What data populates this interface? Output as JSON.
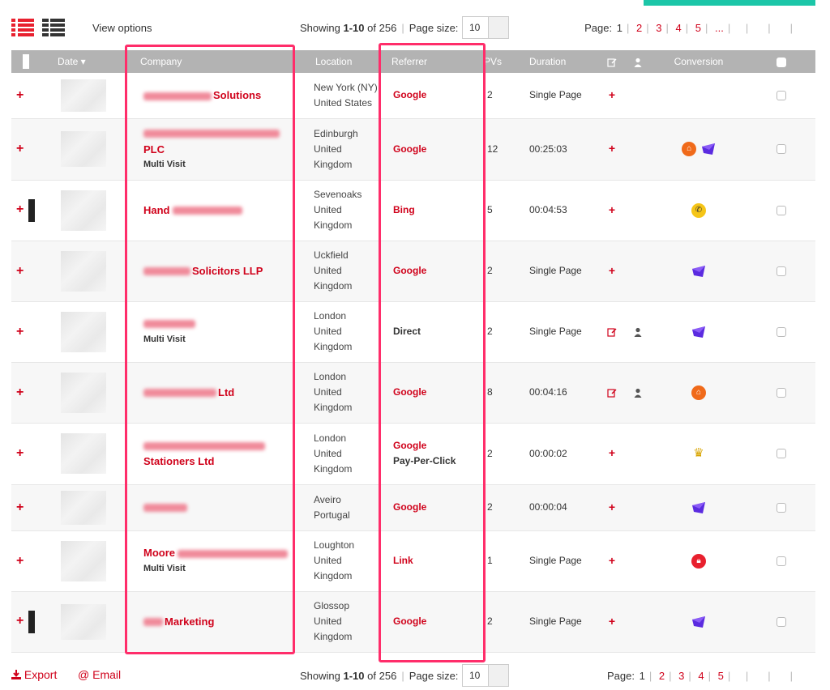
{
  "toolbar": {
    "view_options_label": "View options",
    "showing_prefix": "Showing",
    "showing_range": "1-10",
    "showing_of": "of 256",
    "page_size_label": "Page size:",
    "page_size_value": "10",
    "page_label": "Page:",
    "pages": [
      "1",
      "2",
      "3",
      "4",
      "5",
      "..."
    ],
    "current_page": "1"
  },
  "columns": {
    "date": "Date ▾",
    "company": "Company",
    "location": "Location",
    "referrer": "Referrer",
    "pvs": "PVs",
    "duration": "Duration",
    "conversion": "Conversion"
  },
  "rows": [
    {
      "company_suffix": "Solutions",
      "multi": "",
      "loc1": "New York (NY)",
      "loc2": "United States",
      "loc3": "",
      "referrer": "Google",
      "referrer_sub": "",
      "pvs": "2",
      "duration": "Single Page",
      "flag": false
    },
    {
      "company_suffix": "PLC",
      "multi": "Multi Visit",
      "loc1": "Edinburgh",
      "loc2": "United",
      "loc3": "Kingdom",
      "referrer": "Google",
      "referrer_sub": "",
      "pvs": "12",
      "duration": "00:25:03",
      "flag": false
    },
    {
      "company_suffix": "Hand",
      "multi": "",
      "loc1": "Sevenoaks",
      "loc2": "United",
      "loc3": "Kingdom",
      "referrer": "Bing",
      "referrer_sub": "",
      "pvs": "5",
      "duration": "00:04:53",
      "flag": true
    },
    {
      "company_suffix": "Solicitors LLP",
      "multi": "",
      "loc1": "Uckfield",
      "loc2": "United",
      "loc3": "Kingdom",
      "referrer": "Google",
      "referrer_sub": "",
      "pvs": "2",
      "duration": "Single Page",
      "flag": false
    },
    {
      "company_suffix": "",
      "multi": "Multi Visit",
      "loc1": "London",
      "loc2": "United",
      "loc3": "Kingdom",
      "referrer": "Direct",
      "referrer_sub": "",
      "pvs": "2",
      "duration": "Single Page",
      "flag": false
    },
    {
      "company_suffix": "Ltd",
      "multi": "",
      "loc1": "London",
      "loc2": "United",
      "loc3": "Kingdom",
      "referrer": "Google",
      "referrer_sub": "",
      "pvs": "8",
      "duration": "00:04:16",
      "flag": false
    },
    {
      "company_suffix": "Stationers Ltd",
      "multi": "",
      "loc1": "London",
      "loc2": "United",
      "loc3": "Kingdom",
      "referrer": "Google",
      "referrer_sub": "Pay-Per-Click",
      "pvs": "2",
      "duration": "00:00:02",
      "flag": false
    },
    {
      "company_suffix": "",
      "multi": "",
      "loc1": "Aveiro",
      "loc2": "Portugal",
      "loc3": "",
      "referrer": "Google",
      "referrer_sub": "",
      "pvs": "2",
      "duration": "00:00:04",
      "flag": false
    },
    {
      "company_suffix": "Moore",
      "multi": "Multi Visit",
      "loc1": "Loughton",
      "loc2": "United",
      "loc3": "Kingdom",
      "referrer": "Link",
      "referrer_sub": "",
      "pvs": "1",
      "duration": "Single Page",
      "flag": false
    },
    {
      "company_suffix": "Marketing",
      "multi": "",
      "loc1": "Glossop",
      "loc2": "United",
      "loc3": "Kingdom",
      "referrer": "Google",
      "referrer_sub": "",
      "pvs": "2",
      "duration": "Single Page",
      "flag": true
    }
  ],
  "footer": {
    "export_label": "Export",
    "email_label": "Email"
  },
  "icons": {
    "list_view": "list-view-icon",
    "grid_view": "table-view-icon",
    "note": "edit-note-icon",
    "user": "user-icon",
    "conversion_types": [
      "house-icon",
      "brand-icon",
      "phone-icon",
      "trophy-icon",
      "lock-icon"
    ]
  },
  "colors": {
    "accent_red": "#d0021b",
    "highlight_pink": "#ff2d6a",
    "teal": "#1cc6a8",
    "header_gray": "#b3b3b3"
  }
}
